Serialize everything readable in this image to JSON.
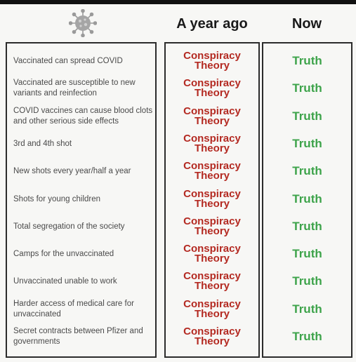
{
  "header": {
    "icon": "virus-icon",
    "col_ago": "A year ago",
    "col_now": "Now"
  },
  "colors": {
    "conspiracy": "#b42a22",
    "truth": "#3da34a",
    "border": "#2b2b2b"
  },
  "rows": [
    {
      "item": "Vaccinated can spread COVID",
      "ago": "Conspiracy Theory",
      "now": "Truth"
    },
    {
      "item": "Vaccinated are susceptible to new variants and reinfection",
      "ago": "Conspiracy Theory",
      "now": "Truth"
    },
    {
      "item": "COVID vaccines can cause blood clots and other serious side effects",
      "ago": "Conspiracy Theory",
      "now": "Truth"
    },
    {
      "item": "3rd and 4th shot",
      "ago": "Conspiracy Theory",
      "now": "Truth"
    },
    {
      "item": "New shots every year/half a year",
      "ago": "Conspiracy Theory",
      "now": "Truth"
    },
    {
      "item": "Shots for young children",
      "ago": "Conspiracy Theory",
      "now": "Truth"
    },
    {
      "item": "Total segregation of the society",
      "ago": "Conspiracy Theory",
      "now": "Truth"
    },
    {
      "item": "Camps for the unvaccinated",
      "ago": "Conspiracy Theory",
      "now": "Truth"
    },
    {
      "item": "Unvaccinated unable to work",
      "ago": "Conspiracy Theory",
      "now": "Truth"
    },
    {
      "item": "Harder access of medical care for unvaccinated",
      "ago": "Conspiracy Theory",
      "now": "Truth"
    },
    {
      "item": "Secret contracts between Pfizer and governments",
      "ago": "Conspiracy Theory",
      "now": "Truth"
    }
  ]
}
